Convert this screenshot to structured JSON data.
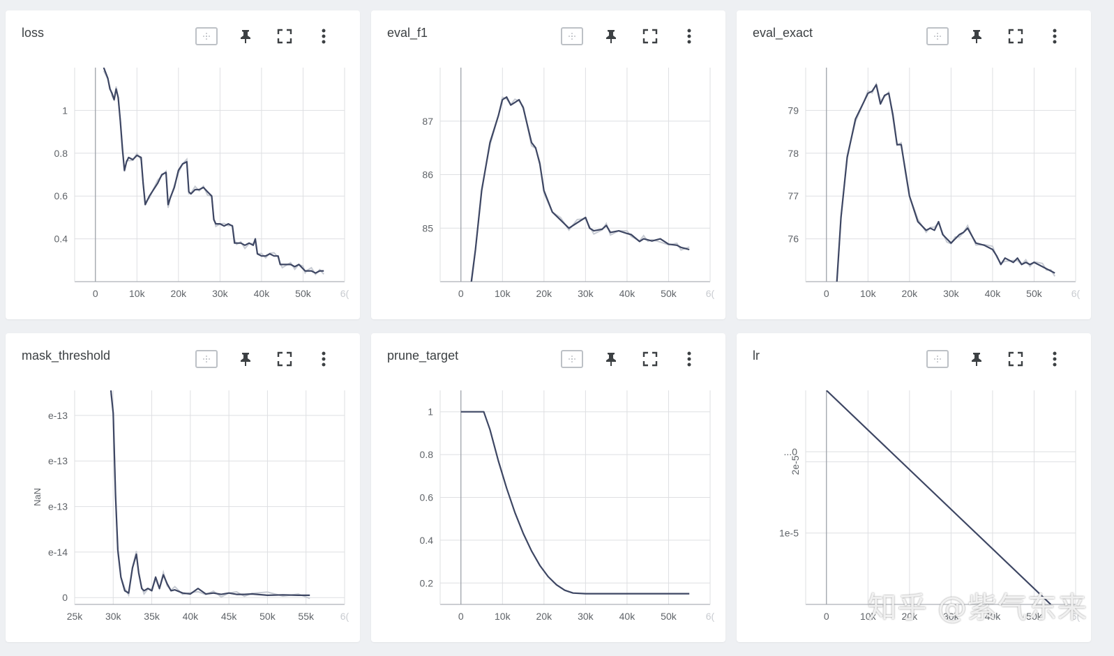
{
  "watermark": "知乎 @紫气东来",
  "colors": {
    "line": "#3d4663",
    "raw": "#c7cbd3",
    "grid": "#dedfe2",
    "axis": "#9a9ea6",
    "tick": "#5f6368"
  },
  "icons": [
    "fit-domain-icon",
    "pin-icon",
    "fullscreen-icon",
    "more-vert-icon"
  ],
  "charts": [
    {
      "title": "loss",
      "chart_data": {
        "type": "line",
        "x_ticks": [
          "0",
          "10k",
          "20k",
          "30k",
          "40k",
          "50k",
          "6("
        ],
        "y_ticks": [
          "1",
          "0.8",
          "0.6",
          "0.4"
        ],
        "y_edge_top": "1.2",
        "y_edge_bottom": "0.2",
        "xlim": [
          -5000,
          60000
        ],
        "ylim": [
          0.2,
          1.2
        ],
        "series": [
          {
            "x": [
              2000,
              3000,
              3500,
              4000,
              4500,
              5000,
              5500,
              6000,
              6500,
              7000,
              7500,
              8000,
              9000,
              10000,
              11000,
              11500,
              12000,
              13000,
              14000,
              15000,
              16000,
              17000,
              17500,
              18000,
              19000,
              20000,
              21000,
              22000,
              22500,
              23000,
              24000,
              25000,
              26000,
              27000,
              28000,
              28500,
              29000,
              30000,
              31000,
              32000,
              33000,
              33500,
              34000,
              35000,
              36000,
              37000,
              38000,
              38500,
              39000,
              40000,
              41000,
              42000,
              43000,
              44000,
              44500,
              45000,
              46000,
              47000,
              48000,
              49000,
              50000,
              50500,
              51000,
              52000,
              53000,
              54000,
              55000
            ],
            "y": [
              1.2,
              1.15,
              1.1,
              1.08,
              1.05,
              1.1,
              1.06,
              0.95,
              0.82,
              0.72,
              0.76,
              0.78,
              0.77,
              0.79,
              0.78,
              0.66,
              0.56,
              0.6,
              0.63,
              0.66,
              0.7,
              0.71,
              0.56,
              0.59,
              0.64,
              0.72,
              0.75,
              0.76,
              0.62,
              0.61,
              0.63,
              0.63,
              0.64,
              0.62,
              0.6,
              0.49,
              0.47,
              0.47,
              0.46,
              0.47,
              0.46,
              0.38,
              0.38,
              0.38,
              0.37,
              0.38,
              0.37,
              0.4,
              0.33,
              0.32,
              0.32,
              0.33,
              0.32,
              0.32,
              0.28,
              0.28,
              0.28,
              0.28,
              0.27,
              0.28,
              0.26,
              0.25,
              0.25,
              0.25,
              0.24,
              0.25,
              0.25
            ]
          }
        ]
      }
    },
    {
      "title": "eval_f1",
      "chart_data": {
        "type": "line",
        "x_ticks": [
          "0",
          "10k",
          "20k",
          "30k",
          "40k",
          "50k",
          "6("
        ],
        "y_ticks": [
          "87",
          "86",
          "85"
        ],
        "y_edge_top": "88",
        "y_edge_bottom": "84",
        "xlim": [
          -5000,
          60000
        ],
        "ylim": [
          84,
          88
        ],
        "series": [
          {
            "x": [
              2500,
              3500,
              5000,
              7000,
              9000,
              10000,
              11000,
              12000,
              13000,
              14000,
              15000,
              17000,
              18000,
              19000,
              20000,
              22000,
              24000,
              26000,
              27000,
              28000,
              30000,
              31000,
              32000,
              34000,
              35000,
              36000,
              38000,
              40000,
              41000,
              43000,
              44000,
              45000,
              46000,
              48000,
              50000,
              52000,
              53000,
              54000,
              55000
            ],
            "y": [
              84.0,
              84.6,
              85.7,
              86.6,
              87.1,
              87.4,
              87.45,
              87.3,
              87.35,
              87.4,
              87.25,
              86.6,
              86.5,
              86.2,
              85.7,
              85.3,
              85.15,
              85.0,
              85.05,
              85.1,
              85.2,
              85.0,
              84.95,
              84.98,
              85.05,
              84.92,
              84.95,
              84.9,
              84.88,
              84.75,
              84.8,
              84.78,
              84.76,
              84.8,
              84.7,
              84.68,
              84.64,
              84.62,
              84.6
            ]
          }
        ]
      }
    },
    {
      "title": "eval_exact",
      "chart_data": {
        "type": "line",
        "x_ticks": [
          "0",
          "10k",
          "20k",
          "30k",
          "40k",
          "50k",
          "6("
        ],
        "y_ticks": [
          "79",
          "78",
          "77",
          "76"
        ],
        "y_edge_top": "80",
        "y_edge_bottom": "75",
        "xlim": [
          -5000,
          60000
        ],
        "ylim": [
          75,
          80
        ],
        "series": [
          {
            "x": [
              2500,
              3500,
              5000,
              7000,
              9000,
              10000,
              11000,
              12000,
              13000,
              14000,
              15000,
              16000,
              17000,
              18000,
              19000,
              20000,
              22000,
              24000,
              25000,
              26000,
              27000,
              28000,
              29000,
              30000,
              31000,
              32000,
              33000,
              34000,
              36000,
              38000,
              40000,
              41000,
              42000,
              43000,
              44000,
              45000,
              46000,
              47000,
              48000,
              49000,
              50000,
              52000,
              53000,
              54000,
              55000
            ],
            "y": [
              75.0,
              76.5,
              77.9,
              78.8,
              79.2,
              79.4,
              79.45,
              79.6,
              79.15,
              79.35,
              79.4,
              78.9,
              78.2,
              78.2,
              77.6,
              77.0,
              76.4,
              76.2,
              76.25,
              76.2,
              76.4,
              76.1,
              76.0,
              75.9,
              76.0,
              76.1,
              76.15,
              76.25,
              75.9,
              75.85,
              75.75,
              75.6,
              75.4,
              75.55,
              75.5,
              75.45,
              75.55,
              75.4,
              75.45,
              75.4,
              75.45,
              75.35,
              75.3,
              75.25,
              75.2
            ]
          }
        ]
      }
    },
    {
      "title": "mask_threshold",
      "chart_data": {
        "type": "line",
        "x_ticks": [
          "25k",
          "30k",
          "35k",
          "40k",
          "45k",
          "50k",
          "55k",
          "6("
        ],
        "y_ticks": [
          "e-13",
          "e-13",
          "e-13",
          "e-14",
          "0"
        ],
        "y_label": "NaN",
        "xlim": [
          25000,
          60000
        ],
        "ylim": [
          -0.2,
          4.5
        ],
        "series": [
          {
            "x": [
              29700,
              30000,
              30300,
              30600,
              31000,
              31500,
              32000,
              32500,
              33000,
              33300,
              33700,
              34000,
              34500,
              35000,
              35500,
              36000,
              36500,
              37000,
              37500,
              38000,
              39000,
              40000,
              41000,
              42000,
              43000,
              44000,
              45000,
              46000,
              47000,
              48000,
              50000,
              52000,
              54000,
              55500
            ],
            "y": [
              4.5,
              4.0,
              2.2,
              1.0,
              0.4,
              0.1,
              0.05,
              0.6,
              0.9,
              0.5,
              0.15,
              0.1,
              0.15,
              0.1,
              0.4,
              0.15,
              0.45,
              0.25,
              0.1,
              0.12,
              0.05,
              0.03,
              0.15,
              0.03,
              0.05,
              0.02,
              0.05,
              0.02,
              0.02,
              0.03,
              0.0,
              0.01,
              0.0,
              0.0
            ]
          }
        ]
      }
    },
    {
      "title": "prune_target",
      "chart_data": {
        "type": "line",
        "x_ticks": [
          "0",
          "10k",
          "20k",
          "30k",
          "40k",
          "50k",
          "6("
        ],
        "y_ticks": [
          "1",
          "0.8",
          "0.6",
          "0.4",
          "0.2"
        ],
        "xlim": [
          -5000,
          60000
        ],
        "ylim": [
          0.1,
          1.1
        ],
        "series": [
          {
            "x": [
              0,
              2000,
              4000,
              5500,
              7000,
              9000,
              11000,
              13000,
              15000,
              17000,
              19000,
              21000,
              23000,
              25000,
              27000,
              30000,
              35000,
              40000,
              45000,
              50000,
              55000
            ],
            "y": [
              1.0,
              1.0,
              1.0,
              1.0,
              0.917,
              0.771,
              0.643,
              0.529,
              0.432,
              0.35,
              0.282,
              0.23,
              0.192,
              0.166,
              0.153,
              0.15,
              0.15,
              0.15,
              0.15,
              0.15,
              0.15
            ]
          }
        ]
      }
    },
    {
      "title": "lr",
      "chart_data": {
        "type": "line",
        "x_ticks": [
          "0",
          "10k",
          "20k",
          "30k",
          "40k",
          "50k",
          "6("
        ],
        "y_ticks": [
          "2e-5",
          "1e-5"
        ],
        "y_mid_label": "...0",
        "xlim": [
          -5000,
          60000
        ],
        "ylim": [
          0,
          3e-05
        ],
        "series": [
          {
            "x": [
              0,
              54000
            ],
            "y": [
              3e-05,
              0
            ]
          }
        ]
      }
    }
  ]
}
